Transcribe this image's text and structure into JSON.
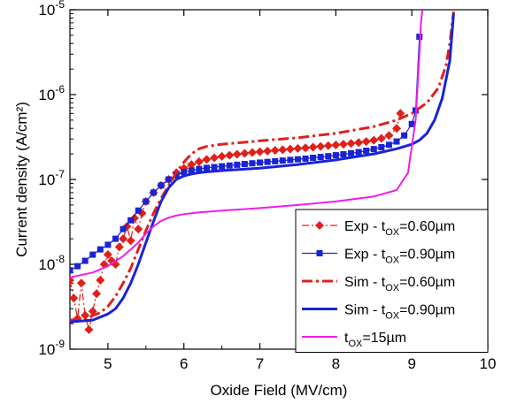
{
  "chart_data": {
    "type": "line",
    "xlabel": "Oxide Field (MV/cm)",
    "ylabel": "Current density (A/cm²)",
    "xlim": [
      4.5,
      10
    ],
    "ylim": [
      1e-09,
      1e-05
    ],
    "yscale": "log",
    "xticks": [
      "5",
      "6",
      "7",
      "8",
      "9",
      "10"
    ],
    "yticks": [
      {
        "value": 1e-09,
        "base": "10",
        "exp": "-9"
      },
      {
        "value": 1e-08,
        "base": "10",
        "exp": "-8"
      },
      {
        "value": 1e-07,
        "base": "10",
        "exp": "-7"
      },
      {
        "value": 1e-06,
        "base": "10",
        "exp": "-6"
      },
      {
        "value": 1e-05,
        "base": "10",
        "exp": "-5"
      }
    ],
    "legend_position": "bottom-right",
    "series": [
      {
        "name": "Exp - tOX=0.60µm",
        "legend": {
          "prefix": "Exp - t",
          "sub": "OX",
          "suffix": "=0.60µm"
        },
        "color": "#e0201b",
        "line": "dashdot-thin",
        "marker": "diamond",
        "x": [
          4.5,
          4.55,
          4.6,
          4.65,
          4.7,
          4.75,
          4.8,
          4.85,
          4.9,
          4.95,
          5.0,
          5.05,
          5.1,
          5.15,
          5.2,
          5.25,
          5.3,
          5.35,
          5.4,
          5.45,
          5.5,
          5.6,
          5.7,
          5.8,
          5.9,
          6.0,
          6.1,
          6.2,
          6.3,
          6.4,
          6.5,
          6.6,
          6.7,
          6.8,
          6.9,
          7.0,
          7.1,
          7.2,
          7.3,
          7.4,
          7.5,
          7.6,
          7.7,
          7.8,
          7.9,
          8.0,
          8.1,
          8.2,
          8.3,
          8.4,
          8.5,
          8.6,
          8.7,
          8.8,
          8.85
        ],
        "y": [
          6.5e-09,
          4e-09,
          2.3e-09,
          6e-09,
          2.5e-09,
          1.7e-09,
          2.8e-09,
          4.5e-09,
          6.5e-09,
          1e-08,
          1.3e-08,
          1.1e-08,
          1e-08,
          1.6e-08,
          2e-08,
          2.8e-08,
          1.9e-08,
          3.5e-08,
          2.6e-08,
          4e-08,
          5.5e-08,
          7e-08,
          8.5e-08,
          1e-07,
          1.2e-07,
          1.35e-07,
          1.5e-07,
          1.62e-07,
          1.72e-07,
          1.8e-07,
          1.87e-07,
          1.93e-07,
          1.98e-07,
          2.03e-07,
          2.08e-07,
          2.12e-07,
          2.16e-07,
          2.2e-07,
          2.24e-07,
          2.28e-07,
          2.32e-07,
          2.36e-07,
          2.4e-07,
          2.45e-07,
          2.5e-07,
          2.55e-07,
          2.6e-07,
          2.66e-07,
          2.72e-07,
          2.8e-07,
          2.9e-07,
          3.05e-07,
          3.3e-07,
          4e-07,
          6e-07
        ]
      },
      {
        "name": "Exp - tOX=0.90µm",
        "legend": {
          "prefix": "Exp - t",
          "sub": "OX",
          "suffix": "=0.90µm"
        },
        "color": "#1a23d6",
        "line": "solid-thin",
        "marker": "square",
        "x": [
          4.5,
          4.6,
          4.7,
          4.8,
          4.9,
          5.0,
          5.1,
          5.2,
          5.3,
          5.4,
          5.5,
          5.6,
          5.7,
          5.8,
          5.9,
          6.0,
          6.1,
          6.2,
          6.3,
          6.4,
          6.5,
          6.6,
          6.7,
          6.8,
          6.9,
          7.0,
          7.1,
          7.2,
          7.3,
          7.4,
          7.5,
          7.6,
          7.7,
          7.8,
          7.9,
          8.0,
          8.1,
          8.2,
          8.3,
          8.4,
          8.5,
          8.6,
          8.7,
          8.8,
          8.9,
          9.0,
          9.05,
          9.1
        ],
        "y": [
          8.5e-09,
          9.5e-09,
          1.1e-08,
          1.3e-08,
          1.5e-08,
          1.7e-08,
          2e-08,
          2.6e-08,
          3.3e-08,
          4.3e-08,
          5.5e-08,
          7e-08,
          8.5e-08,
          1e-07,
          1.12e-07,
          1.22e-07,
          1.28e-07,
          1.33e-07,
          1.37e-07,
          1.4e-07,
          1.43e-07,
          1.46e-07,
          1.49e-07,
          1.52e-07,
          1.55e-07,
          1.58e-07,
          1.61e-07,
          1.64e-07,
          1.67e-07,
          1.7e-07,
          1.73e-07,
          1.76e-07,
          1.8e-07,
          1.84e-07,
          1.88e-07,
          1.93e-07,
          1.98e-07,
          2.04e-07,
          2.1e-07,
          2.18e-07,
          2.28e-07,
          2.4e-07,
          2.56e-07,
          2.8e-07,
          3.3e-07,
          4.5e-07,
          6.5e-07,
          4.8e-06
        ]
      },
      {
        "name": "Sim - tOX=0.60µm",
        "legend": {
          "prefix": "Sim - t",
          "sub": "OX",
          "suffix": "=0.60µm"
        },
        "color": "#e0201b",
        "line": "dashdot-thick",
        "marker": "none",
        "x": [
          4.5,
          4.7,
          4.9,
          5.0,
          5.1,
          5.2,
          5.3,
          5.4,
          5.5,
          5.6,
          5.7,
          5.8,
          5.9,
          6.0,
          6.1,
          6.2,
          6.3,
          6.5,
          7.0,
          7.5,
          8.0,
          8.5,
          8.8,
          9.0,
          9.2,
          9.35,
          9.45,
          9.5,
          9.55
        ],
        "y": [
          2.2e-09,
          2.3e-09,
          2.7e-09,
          3.2e-09,
          4.2e-09,
          6e-09,
          9e-09,
          1.5e-08,
          2.5e-08,
          4e-08,
          6e-08,
          8.5e-08,
          1.2e-07,
          1.6e-07,
          2e-07,
          2.3e-07,
          2.45e-07,
          2.6e-07,
          2.85e-07,
          3.1e-07,
          3.5e-07,
          4.2e-07,
          5e-07,
          6e-07,
          8e-07,
          1.2e-06,
          2.2e-06,
          4e-06,
          9.5e-06
        ]
      },
      {
        "name": "Sim - tOX=0.90µm",
        "legend": {
          "prefix": "Sim - t",
          "sub": "OX",
          "suffix": "=0.90µm"
        },
        "color": "#1a23d6",
        "line": "solid-thick",
        "marker": "none",
        "x": [
          4.5,
          4.8,
          5.0,
          5.1,
          5.2,
          5.3,
          5.4,
          5.5,
          5.6,
          5.7,
          5.8,
          5.9,
          6.0,
          6.1,
          6.2,
          6.3,
          6.5,
          7.0,
          7.5,
          8.0,
          8.5,
          8.8,
          9.0,
          9.1,
          9.2,
          9.3,
          9.4,
          9.5,
          9.55
        ],
        "y": [
          2.1e-09,
          2.2e-09,
          2.6e-09,
          3e-09,
          4e-09,
          6e-09,
          1e-08,
          1.8e-08,
          3.2e-08,
          5.5e-08,
          8e-08,
          1e-07,
          1.1e-07,
          1.16e-07,
          1.2e-07,
          1.23e-07,
          1.27e-07,
          1.36e-07,
          1.5e-07,
          1.7e-07,
          2e-07,
          2.3e-07,
          2.6e-07,
          2.9e-07,
          3.5e-07,
          5e-07,
          9e-07,
          2.5e-06,
          9e-06
        ]
      },
      {
        "name": "tOX=15µm",
        "legend": {
          "prefix": "t",
          "sub": "OX",
          "suffix": "=15µm"
        },
        "color": "#ee1ee6",
        "line": "solid-medium",
        "marker": "none",
        "x": [
          4.5,
          4.8,
          5.0,
          5.2,
          5.4,
          5.5,
          5.6,
          5.7,
          5.8,
          5.9,
          6.0,
          6.2,
          6.5,
          7.0,
          7.5,
          8.0,
          8.5,
          8.8,
          8.95,
          9.05,
          9.1,
          9.12,
          9.14
        ],
        "y": [
          7e-09,
          8e-09,
          9.5e-09,
          1.25e-08,
          1.8e-08,
          2.3e-08,
          2.8e-08,
          3.25e-08,
          3.55e-08,
          3.75e-08,
          3.9e-08,
          4.1e-08,
          4.3e-08,
          4.6e-08,
          5e-08,
          5.5e-08,
          6.3e-08,
          7.5e-08,
          1.2e-07,
          5e-07,
          3e-06,
          7e-06,
          1e-05
        ]
      }
    ]
  }
}
